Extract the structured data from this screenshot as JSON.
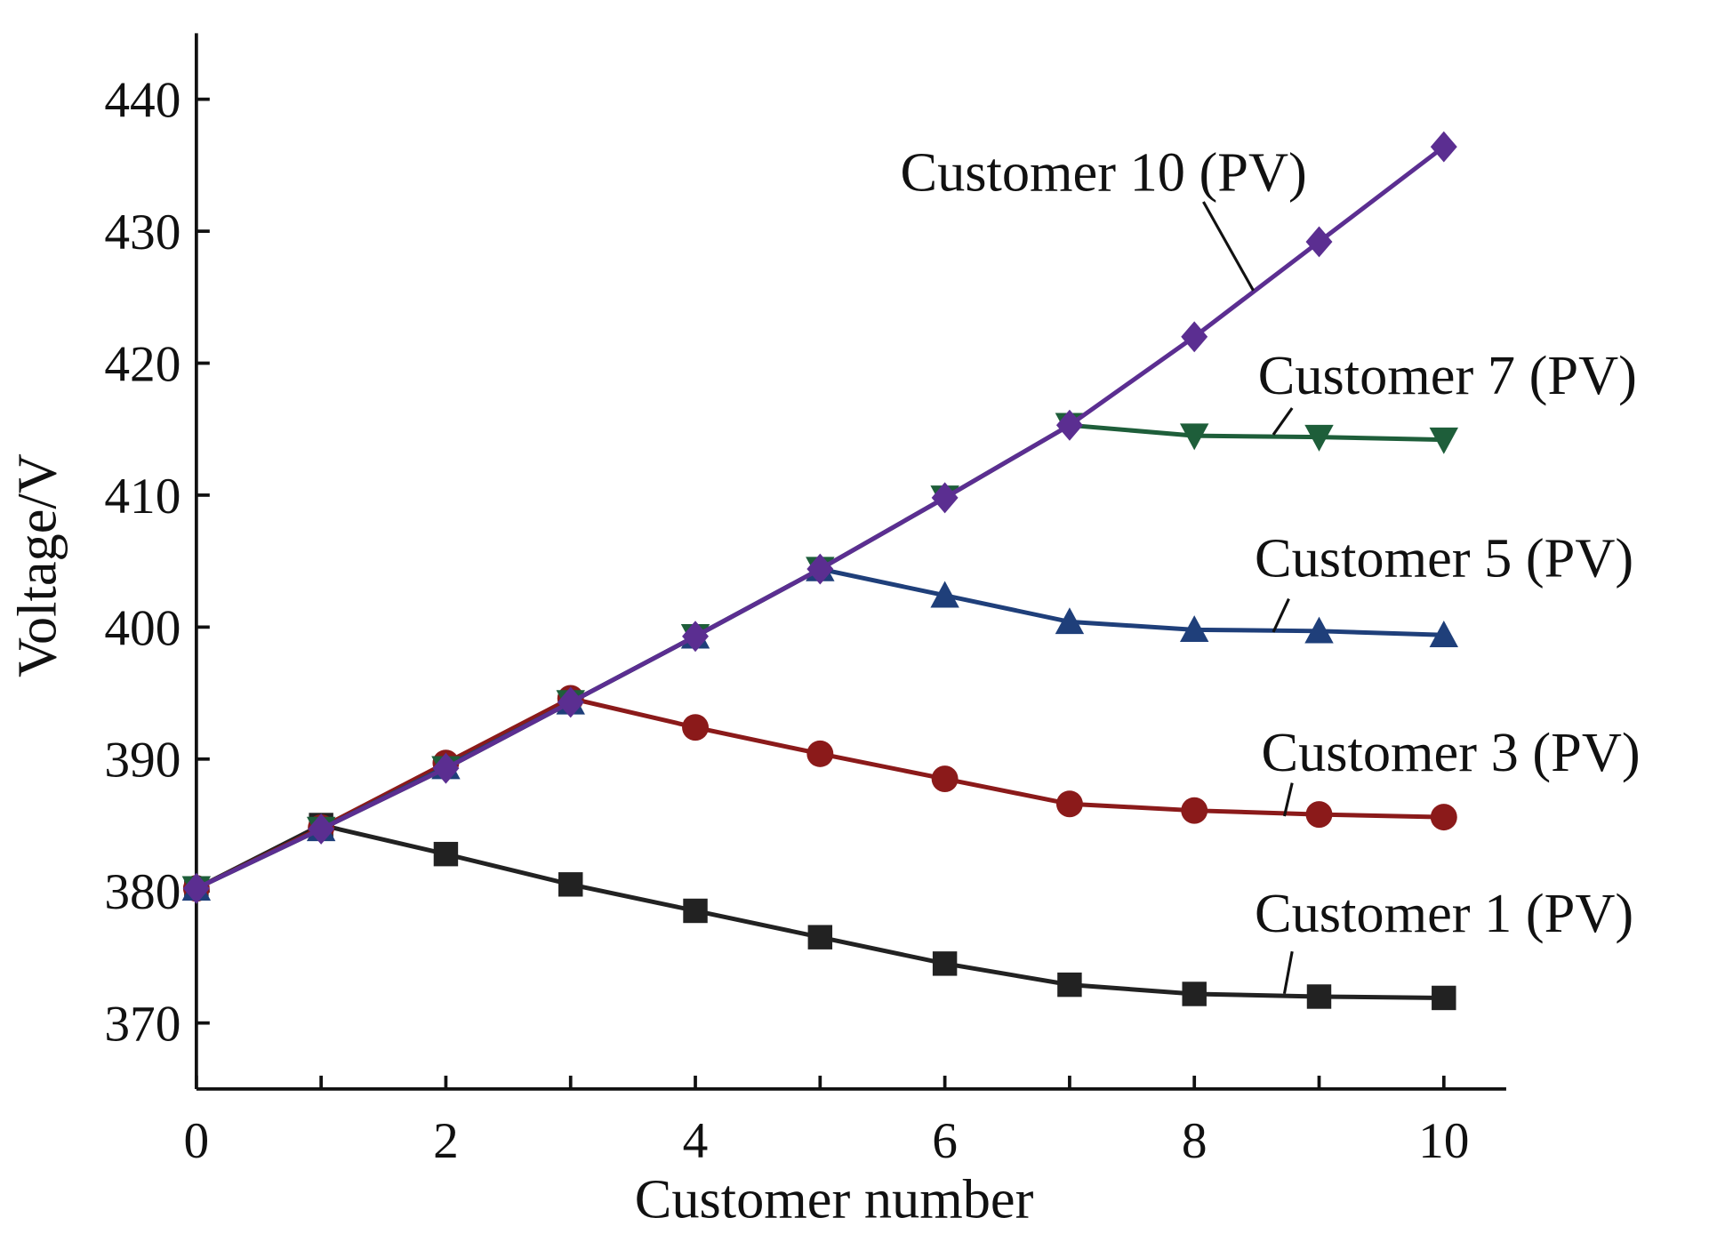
{
  "chart_data": {
    "type": "line",
    "x_label": "Customer number",
    "y_label": "Voltage/V",
    "x": [
      0,
      1,
      2,
      3,
      4,
      5,
      6,
      7,
      8,
      9,
      10
    ],
    "xlim": [
      0,
      10.5
    ],
    "xticks": [
      0,
      2,
      4,
      6,
      8,
      10
    ],
    "ylim": [
      365,
      445
    ],
    "yticks": [
      370,
      380,
      390,
      400,
      410,
      420,
      430,
      440
    ],
    "series": [
      {
        "name": "Customer 1 (PV)",
        "color": "#222222",
        "marker": "square",
        "values": [
          380.2,
          385.0,
          382.8,
          380.5,
          378.5,
          376.5,
          374.5,
          372.9,
          372.2,
          372.0,
          371.9
        ]
      },
      {
        "name": "Customer 3 (PV)",
        "color": "#8b1a1a",
        "marker": "circle",
        "values": [
          380.2,
          384.8,
          389.7,
          394.6,
          392.4,
          390.4,
          388.5,
          386.6,
          386.1,
          385.8,
          385.6
        ]
      },
      {
        "name": "Customer 5 (PV)",
        "color": "#1f3f7a",
        "marker": "triangle-up",
        "values": [
          380.2,
          384.7,
          389.4,
          394.3,
          399.3,
          404.4,
          402.4,
          400.4,
          399.8,
          399.7,
          399.4
        ]
      },
      {
        "name": "Customer 7 (PV)",
        "color": "#1e5e3a",
        "marker": "triangle-down",
        "values": [
          380.2,
          384.7,
          389.3,
          394.3,
          399.3,
          404.4,
          409.8,
          415.3,
          414.5,
          414.4,
          414.2
        ]
      },
      {
        "name": "Customer 10 (PV)",
        "color": "#5b2e91",
        "marker": "diamond",
        "values": [
          380.2,
          384.7,
          389.3,
          394.3,
          399.3,
          404.4,
          409.8,
          415.3,
          422.0,
          429.2,
          436.4
        ]
      }
    ]
  }
}
